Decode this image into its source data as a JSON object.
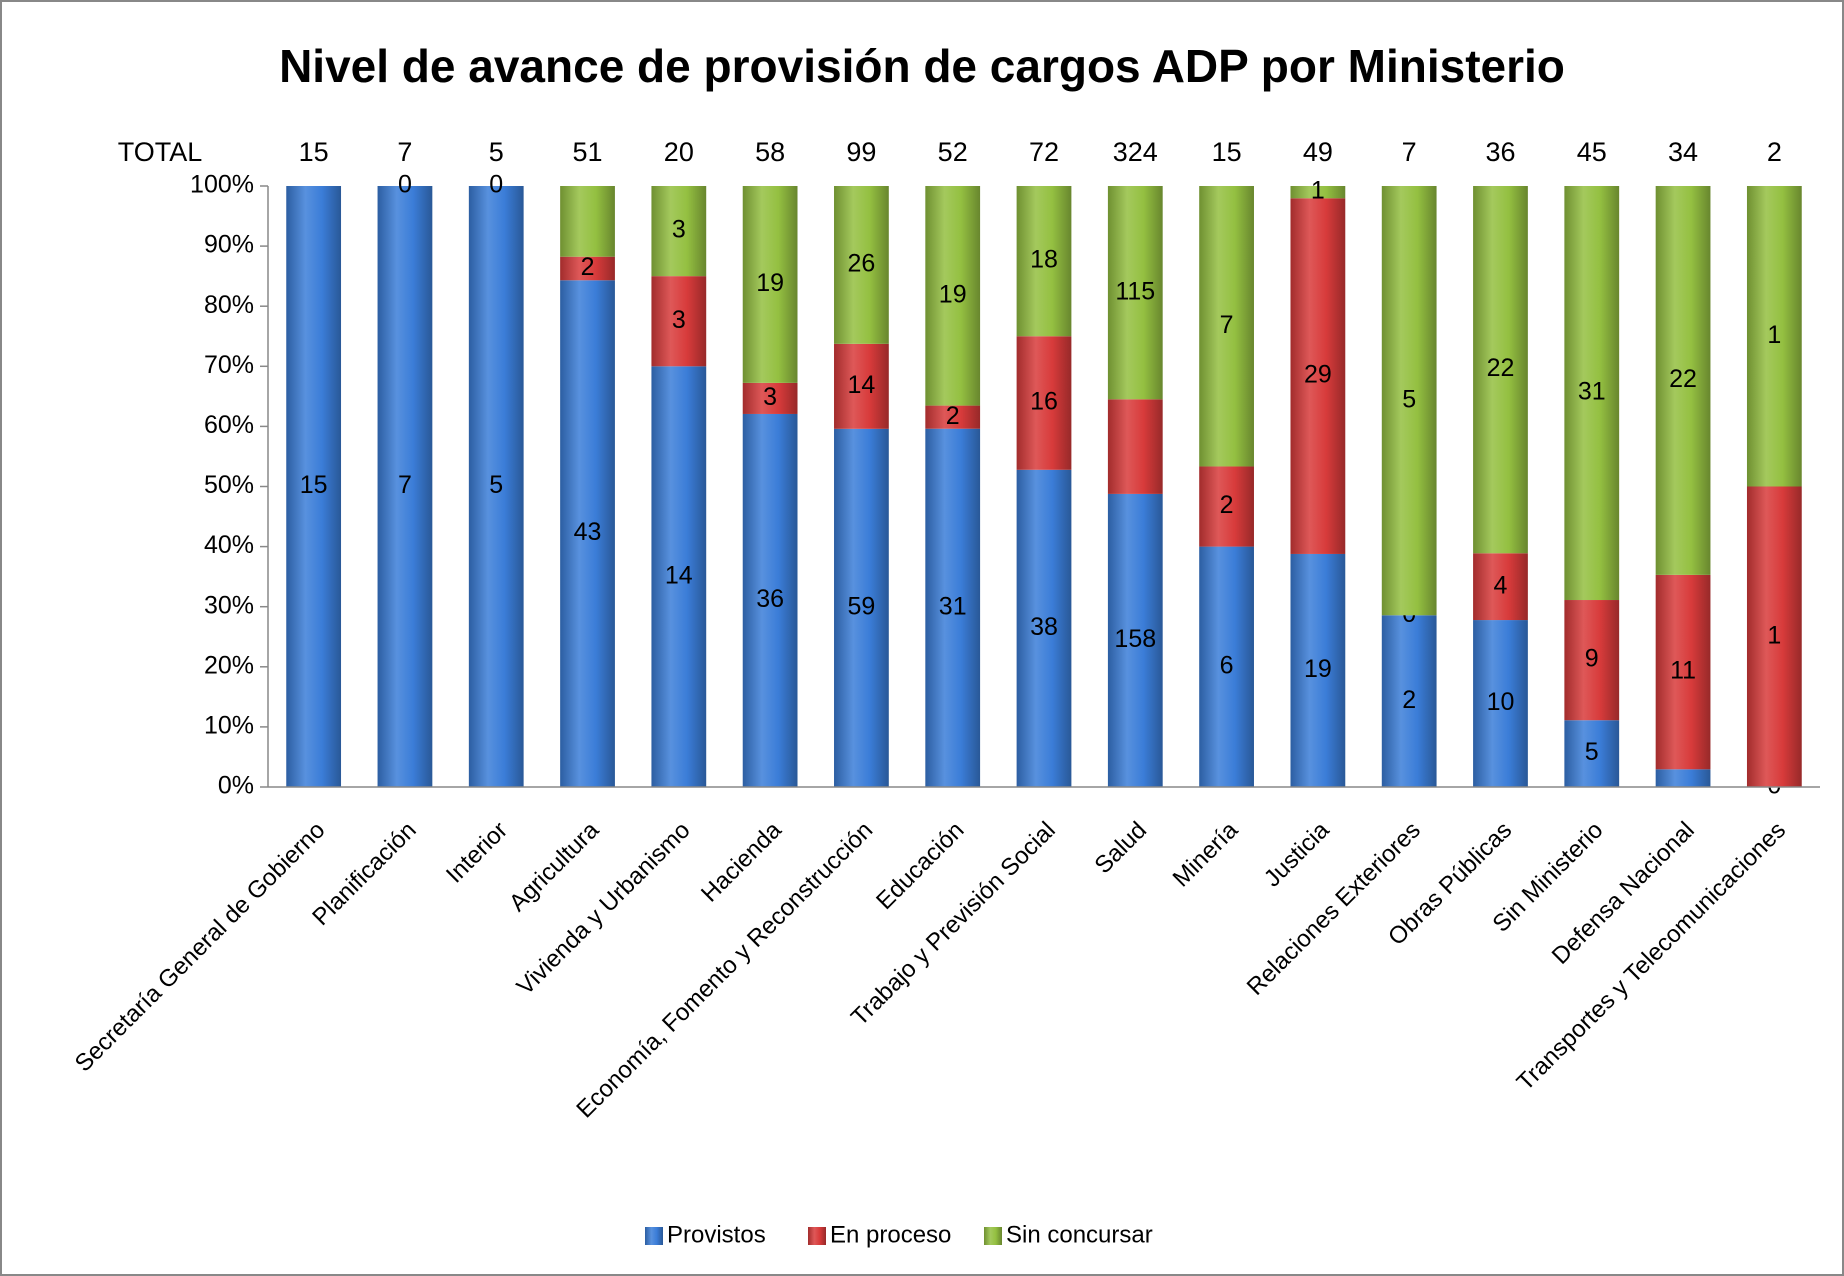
{
  "chart_data": {
    "type": "stacked_percent_bar",
    "title": "Nivel de avance de provisión de cargos ADP por Ministerio",
    "totals_label": "TOTAL",
    "totals": [
      15,
      7,
      5,
      51,
      20,
      58,
      99,
      52,
      72,
      324,
      15,
      49,
      7,
      36,
      45,
      34,
      2
    ],
    "categories": [
      "Secretaría General de Gobierno",
      "Planificación",
      "Interior",
      "Agricultura",
      "Vivienda  y Urbanismo",
      "Hacienda",
      "Economía, Fomento y Reconstrucción",
      "Educación",
      "Trabajo y Previsión Social",
      "Salud",
      "Minería",
      "Justicia",
      "Relaciones Exteriores",
      "Obras Públicas",
      "Sin Ministerio",
      "Defensa Nacional",
      "Transportes y Telecomunicaciones"
    ],
    "series": [
      {
        "name": "Provistos",
        "color": "#3b7dd8",
        "values": [
          15,
          7,
          5,
          43,
          14,
          36,
          59,
          31,
          38,
          158,
          6,
          19,
          2,
          10,
          5,
          1,
          0
        ],
        "value_labels": [
          "15",
          "7",
          "5",
          "43",
          "14",
          "36",
          "59",
          "31",
          "38",
          "158",
          "6",
          "19",
          "2",
          "10",
          "5",
          null,
          "0"
        ]
      },
      {
        "name": "En proceso",
        "color": "#d83b3b",
        "values": [
          0,
          0,
          0,
          2,
          3,
          3,
          14,
          2,
          16,
          51,
          2,
          29,
          0,
          4,
          9,
          11,
          1
        ],
        "value_labels": [
          null,
          "0",
          "0",
          "2",
          "3",
          "3",
          "14",
          "2",
          "16",
          null,
          "2",
          "29",
          "0",
          "4",
          "9",
          "11",
          "1"
        ]
      },
      {
        "name": "Sin concursar",
        "color": "#94c041",
        "values": [
          0,
          0,
          0,
          6,
          3,
          19,
          26,
          19,
          18,
          115,
          7,
          1,
          5,
          22,
          31,
          22,
          1
        ],
        "value_labels": [
          null,
          null,
          null,
          null,
          "3",
          "19",
          "26",
          "19",
          "18",
          "115",
          "7",
          "1",
          "5",
          "22",
          "31",
          "22",
          "1"
        ]
      }
    ],
    "ylim": [
      0,
      100
    ],
    "yticks": [
      {
        "value": 0,
        "label": "0%"
      },
      {
        "value": 10,
        "label": "10%"
      },
      {
        "value": 20,
        "label": "20%"
      },
      {
        "value": 30,
        "label": "30%"
      },
      {
        "value": 40,
        "label": "40%"
      },
      {
        "value": 50,
        "label": "50%"
      },
      {
        "value": 60,
        "label": "60%"
      },
      {
        "value": 70,
        "label": "70%"
      },
      {
        "value": 80,
        "label": "80%"
      },
      {
        "value": 90,
        "label": "90%"
      },
      {
        "value": 100,
        "label": "100%"
      }
    ],
    "legend": "bottom"
  }
}
